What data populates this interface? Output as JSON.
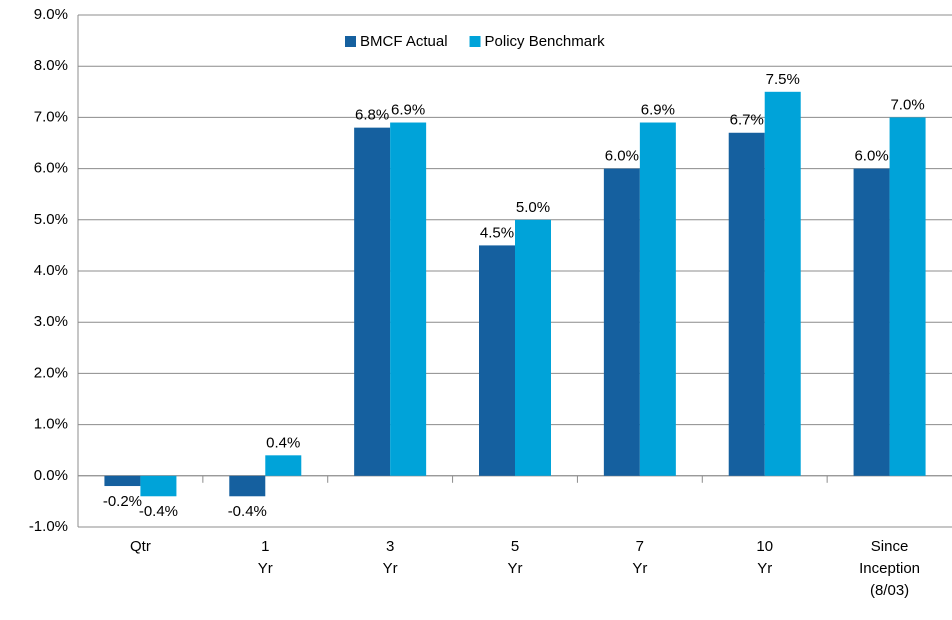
{
  "chart_data": {
    "type": "bar",
    "categories": [
      "Qtr",
      "1 Yr",
      "3 Yr",
      "5 Yr",
      "7 Yr",
      "10 Yr",
      "Since Inception (8/03)"
    ],
    "series": [
      {
        "name": "BMCF Actual",
        "color": "#15609f",
        "values": [
          -0.2,
          -0.4,
          6.8,
          4.5,
          6.0,
          6.7,
          6.0
        ],
        "value_labels": [
          "-0.2%",
          "-0.4%",
          "6.8%",
          "4.5%",
          "6.0%",
          "6.7%",
          "6.0%"
        ]
      },
      {
        "name": "Policy Benchmark",
        "color": "#00a3d9",
        "values": [
          -0.4,
          0.4,
          6.9,
          5.0,
          6.9,
          7.5,
          7.0
        ],
        "value_labels": [
          "-0.4%",
          "0.4%",
          "6.9%",
          "5.0%",
          "6.9%",
          "7.5%",
          "7.0%"
        ]
      }
    ],
    "ylim": [
      -1,
      9
    ],
    "yticks": [
      {
        "value": -1,
        "label": "-1.0%"
      },
      {
        "value": 0,
        "label": "0.0%"
      },
      {
        "value": 1,
        "label": "1.0%"
      },
      {
        "value": 2,
        "label": "2.0%"
      },
      {
        "value": 3,
        "label": "3.0%"
      },
      {
        "value": 4,
        "label": "4.0%"
      },
      {
        "value": 5,
        "label": "5.0%"
      },
      {
        "value": 6,
        "label": "6.0%"
      },
      {
        "value": 7,
        "label": "7.0%"
      },
      {
        "value": 8,
        "label": "8.0%"
      },
      {
        "value": 9,
        "label": "9.0%"
      }
    ],
    "grid": true,
    "legend": "top"
  }
}
